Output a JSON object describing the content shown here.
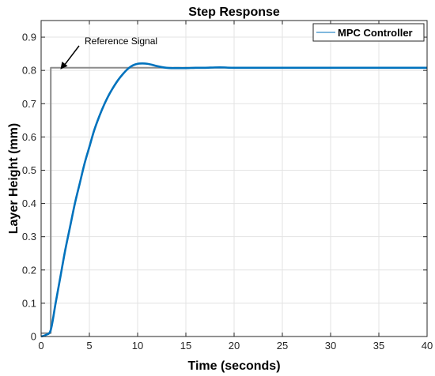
{
  "chart_data": {
    "type": "line",
    "title": "Step Response",
    "xlabel": "Time (seconds)",
    "ylabel": "Layer Height (mm)",
    "xlim": [
      0,
      40
    ],
    "ylim": [
      0,
      0.95
    ],
    "xticks": [
      0,
      5,
      10,
      15,
      20,
      25,
      30,
      35,
      40
    ],
    "yticks": [
      0,
      0.1,
      0.2,
      0.3,
      0.4,
      0.5,
      0.6,
      0.7,
      0.8,
      0.9
    ],
    "xtick_labels": [
      "0",
      "5",
      "10",
      "15",
      "20",
      "25",
      "30",
      "35",
      "40"
    ],
    "ytick_labels": [
      "0",
      "0.1",
      "0.2",
      "0.3",
      "0.4",
      "0.5",
      "0.6",
      "0.7",
      "0.8",
      "0.9"
    ],
    "grid": true,
    "legend_position": "top-right",
    "series": [
      {
        "name": "MPC Controller",
        "color": "#0072BD",
        "x": [
          0,
          0.5,
          1,
          1.5,
          2,
          2.5,
          3,
          3.5,
          4,
          4.5,
          5,
          5.5,
          6,
          6.5,
          7,
          7.5,
          8,
          8.5,
          9,
          9.5,
          10,
          10.5,
          11,
          11.5,
          12,
          12.5,
          13,
          13.5,
          14,
          15,
          16,
          17,
          18,
          19,
          20,
          25,
          30,
          35,
          40
        ],
        "y": [
          0,
          0.005,
          0.02,
          0.1,
          0.18,
          0.26,
          0.33,
          0.4,
          0.46,
          0.52,
          0.57,
          0.62,
          0.66,
          0.695,
          0.725,
          0.75,
          0.772,
          0.79,
          0.805,
          0.815,
          0.82,
          0.821,
          0.82,
          0.817,
          0.813,
          0.81,
          0.808,
          0.807,
          0.807,
          0.807,
          0.808,
          0.808,
          0.809,
          0.809,
          0.808,
          0.808,
          0.808,
          0.808,
          0.808
        ]
      },
      {
        "name": "",
        "color": "#8c8c8c",
        "x": [
          0,
          1,
          1,
          40
        ],
        "y": [
          0.01,
          0.01,
          0.808,
          0.808
        ]
      }
    ],
    "annotations": [
      {
        "text": "Reference Signal",
        "arrow_to_x": 2.0,
        "arrow_to_y": 0.808
      }
    ]
  }
}
